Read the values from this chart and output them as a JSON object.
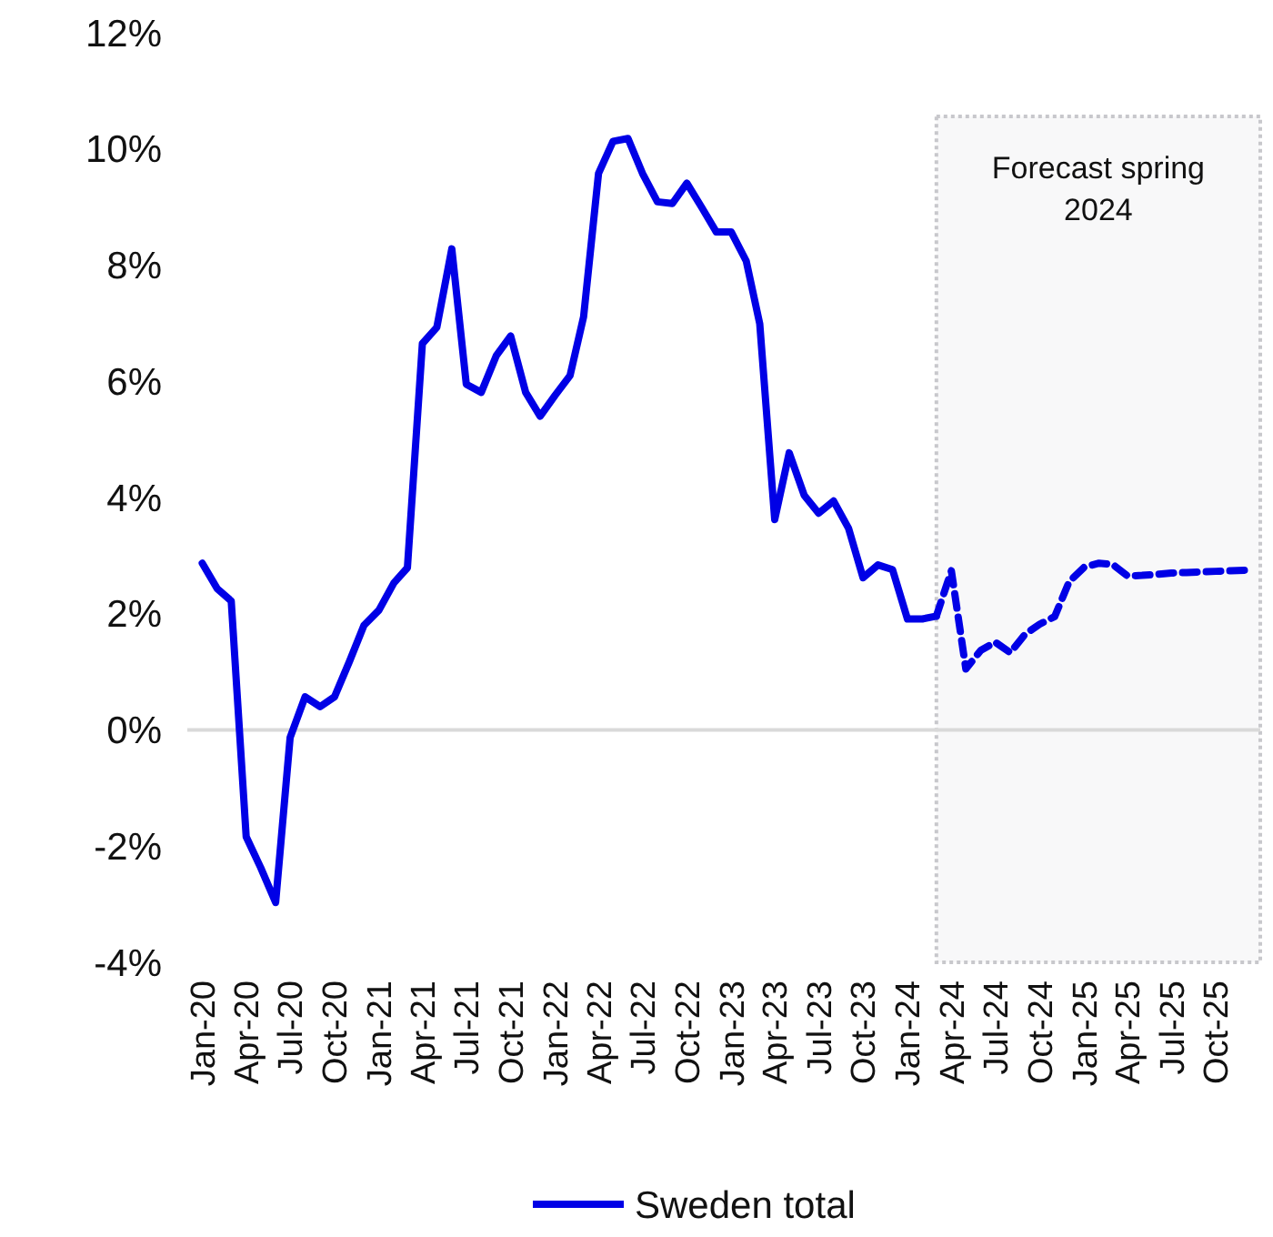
{
  "chart_data": {
    "type": "line",
    "x": [
      "2020-01",
      "2020-02",
      "2020-03",
      "2020-04",
      "2020-05",
      "2020-06",
      "2020-07",
      "2020-08",
      "2020-09",
      "2020-10",
      "2020-11",
      "2020-12",
      "2021-01",
      "2021-02",
      "2021-03",
      "2021-04",
      "2021-05",
      "2021-06",
      "2021-07",
      "2021-08",
      "2021-09",
      "2021-10",
      "2021-11",
      "2021-12",
      "2022-01",
      "2022-02",
      "2022-03",
      "2022-04",
      "2022-05",
      "2022-06",
      "2022-07",
      "2022-08",
      "2022-09",
      "2022-10",
      "2022-11",
      "2022-12",
      "2023-01",
      "2023-02",
      "2023-03",
      "2023-04",
      "2023-05",
      "2023-06",
      "2023-07",
      "2023-08",
      "2023-09",
      "2023-10",
      "2023-11",
      "2023-12",
      "2024-01",
      "2024-02",
      "2024-03",
      "2024-04",
      "2024-05",
      "2024-06",
      "2024-07",
      "2024-08",
      "2024-09",
      "2024-10",
      "2024-11",
      "2024-12",
      "2025-01",
      "2025-02",
      "2025-03",
      "2025-04",
      "2025-05",
      "2025-06",
      "2025-07",
      "2025-08",
      "2025-09",
      "2025-10",
      "2025-11",
      "2025-12"
    ],
    "series": [
      {
        "name": "Sweden total",
        "color": "#0000e6",
        "line_style": "solid",
        "values": [
          2.87,
          2.43,
          2.22,
          -1.84,
          -2.37,
          -2.97,
          -0.13,
          0.57,
          0.4,
          0.57,
          1.18,
          1.8,
          2.06,
          2.53,
          2.79,
          6.65,
          6.93,
          8.28,
          5.95,
          5.81,
          6.44,
          6.78,
          5.81,
          5.4,
          5.76,
          6.1,
          7.11,
          9.58,
          10.13,
          10.18,
          9.58,
          9.09,
          9.06,
          9.41,
          8.99,
          8.57,
          8.57,
          8.07,
          6.99,
          3.62,
          4.77,
          4.04,
          3.73,
          3.94,
          3.47,
          2.62,
          2.84,
          2.76,
          1.91,
          1.91,
          1.96,
          null,
          null,
          null,
          null,
          null,
          null,
          null,
          null,
          null,
          null,
          null,
          null,
          null,
          null,
          null,
          null,
          null,
          null,
          null,
          null,
          null
        ]
      },
      {
        "color": "#0000e6",
        "line_style": "dashed",
        "values": [
          null,
          null,
          null,
          null,
          null,
          null,
          null,
          null,
          null,
          null,
          null,
          null,
          null,
          null,
          null,
          null,
          null,
          null,
          null,
          null,
          null,
          null,
          null,
          null,
          null,
          null,
          null,
          null,
          null,
          null,
          null,
          null,
          null,
          null,
          null,
          null,
          null,
          null,
          null,
          null,
          null,
          null,
          null,
          null,
          null,
          null,
          null,
          null,
          null,
          null,
          1.96,
          2.74,
          1.05,
          1.37,
          1.51,
          1.33,
          1.65,
          1.82,
          1.95,
          2.55,
          2.8,
          2.87,
          2.85,
          2.65,
          2.66,
          2.68,
          2.7,
          2.71,
          2.72,
          2.73,
          2.74,
          2.75
        ]
      }
    ],
    "xlim": [
      "2019-12",
      "2026-01"
    ],
    "xticks": [
      {
        "value": "2020-01",
        "label": "Jan-20"
      },
      {
        "value": "2020-04",
        "label": "Apr-20"
      },
      {
        "value": "2020-07",
        "label": "Jul-20"
      },
      {
        "value": "2020-10",
        "label": "Oct-20"
      },
      {
        "value": "2021-01",
        "label": "Jan-21"
      },
      {
        "value": "2021-04",
        "label": "Apr-21"
      },
      {
        "value": "2021-07",
        "label": "Jul-21"
      },
      {
        "value": "2021-10",
        "label": "Oct-21"
      },
      {
        "value": "2022-01",
        "label": "Jan-22"
      },
      {
        "value": "2022-04",
        "label": "Apr-22"
      },
      {
        "value": "2022-07",
        "label": "Jul-22"
      },
      {
        "value": "2022-10",
        "label": "Oct-22"
      },
      {
        "value": "2023-01",
        "label": "Jan-23"
      },
      {
        "value": "2023-04",
        "label": "Apr-23"
      },
      {
        "value": "2023-07",
        "label": "Jul-23"
      },
      {
        "value": "2023-10",
        "label": "Oct-23"
      },
      {
        "value": "2024-01",
        "label": "Jan-24"
      },
      {
        "value": "2024-04",
        "label": "Apr-24"
      },
      {
        "value": "2024-07",
        "label": "Jul-24"
      },
      {
        "value": "2024-10",
        "label": "Oct-24"
      },
      {
        "value": "2025-01",
        "label": "Jan-25"
      },
      {
        "value": "2025-04",
        "label": "Apr-25"
      },
      {
        "value": "2025-07",
        "label": "Jul-25"
      },
      {
        "value": "2025-10",
        "label": "Oct-25"
      }
    ],
    "ylim": [
      -4,
      12
    ],
    "yticks": [
      {
        "value": -4,
        "label": "-4%"
      },
      {
        "value": -2,
        "label": "-2%"
      },
      {
        "value": 0,
        "label": "0%"
      },
      {
        "value": 2,
        "label": "2%"
      },
      {
        "value": 4,
        "label": "4%"
      },
      {
        "value": 6,
        "label": "6%"
      },
      {
        "value": 8,
        "label": "8%"
      },
      {
        "value": 10,
        "label": "10%"
      },
      {
        "value": 12,
        "label": "12%"
      }
    ],
    "ref_lines": [
      {
        "axis": "y",
        "value": 0,
        "color": "#d9d9d9"
      }
    ],
    "bands": [
      {
        "axis": "x",
        "from": "2024-03",
        "to": "2026-01",
        "label": "Forecast spring 2024",
        "color": "#f8f8f9"
      }
    ],
    "grid": false,
    "legend": "bottom"
  }
}
